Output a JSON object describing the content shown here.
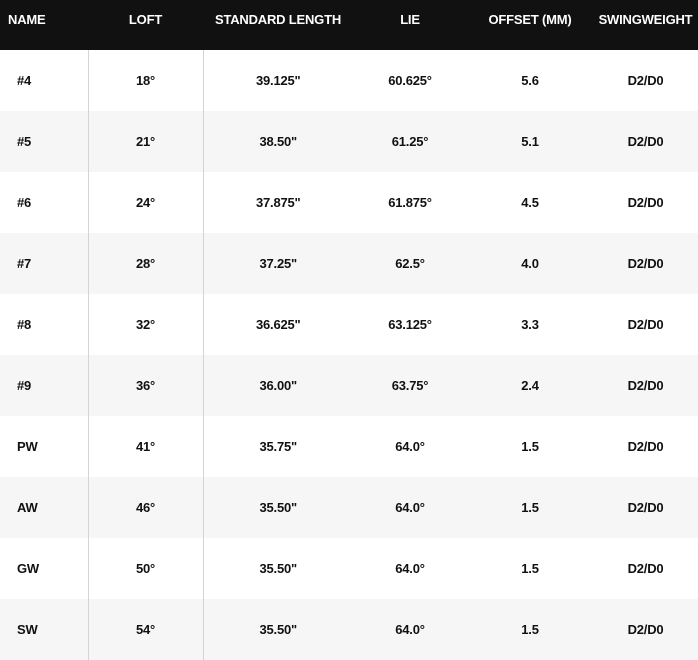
{
  "table": {
    "headers": [
      "NAME",
      "LOFT",
      "STANDARD LENGTH",
      "LIE",
      "OFFSET (MM)",
      "SWINGWEIGHT"
    ],
    "rows": [
      [
        "#4",
        "18°",
        "39.125\"",
        "60.625°",
        "5.6",
        "D2/D0"
      ],
      [
        "#5",
        "21°",
        "38.50\"",
        "61.25°",
        "5.1",
        "D2/D0"
      ],
      [
        "#6",
        "24°",
        "37.875\"",
        "61.875°",
        "4.5",
        "D2/D0"
      ],
      [
        "#7",
        "28°",
        "37.25\"",
        "62.5°",
        "4.0",
        "D2/D0"
      ],
      [
        "#8",
        "32°",
        "36.625\"",
        "63.125°",
        "3.3",
        "D2/D0"
      ],
      [
        "#9",
        "36°",
        "36.00\"",
        "63.75°",
        "2.4",
        "D2/D0"
      ],
      [
        "PW",
        "41°",
        "35.75\"",
        "64.0°",
        "1.5",
        "D2/D0"
      ],
      [
        "AW",
        "46°",
        "35.50\"",
        "64.0°",
        "1.5",
        "D2/D0"
      ],
      [
        "GW",
        "50°",
        "35.50\"",
        "64.0°",
        "1.5",
        "D2/D0"
      ],
      [
        "SW",
        "54°",
        "35.50\"",
        "64.0°",
        "1.5",
        "D2/D0"
      ]
    ]
  }
}
